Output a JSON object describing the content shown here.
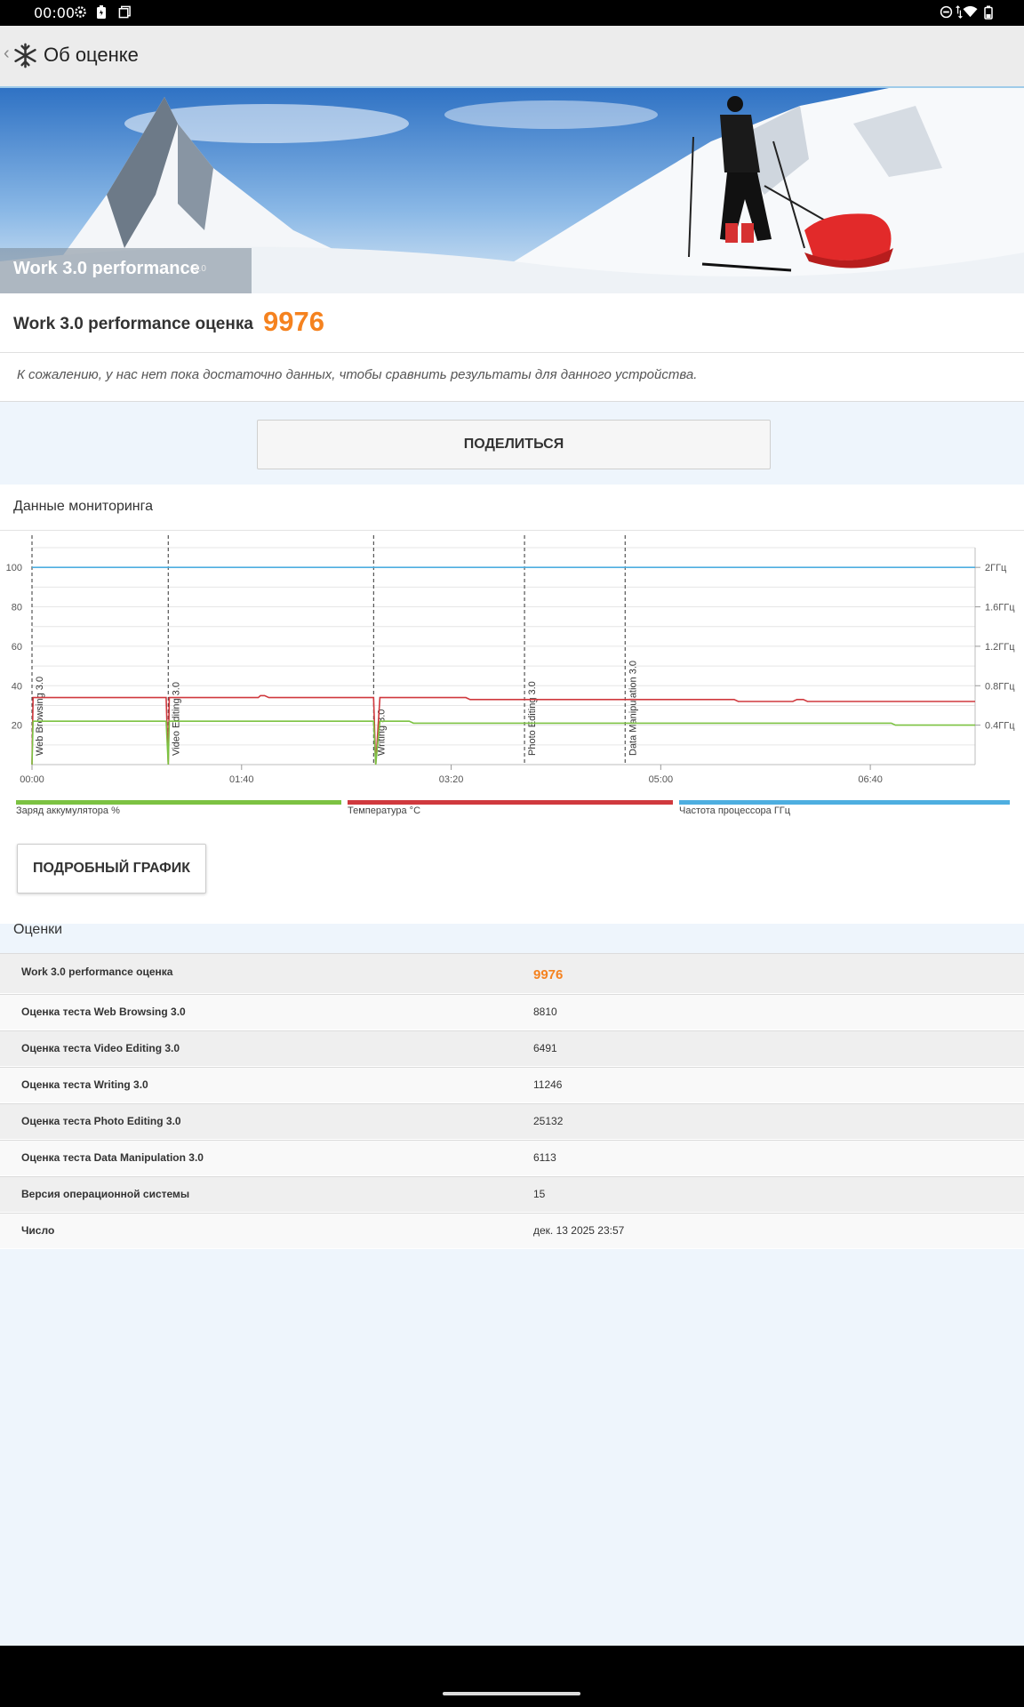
{
  "status_bar": {
    "time": "00:00",
    "icons_left": [
      "settings-icon",
      "battery-saver-icon",
      "screenshot-icon"
    ],
    "icons_right": [
      "dnd-icon",
      "data-arrows-icon",
      "wifi-icon",
      "battery-icon"
    ]
  },
  "app_bar": {
    "back_icon": "chevron-left-icon",
    "logo_icon": "snowflake-logo-icon",
    "title": "Об оценке"
  },
  "banner": {
    "label": "Work 3.0 performance",
    "badge": "3.0"
  },
  "score": {
    "label": "Work 3.0 performance оценка",
    "value": "9976",
    "accent_color": "#f5821f"
  },
  "notice": "К сожалению, у нас нет пока достаточно данных, чтобы сравнить результаты для данного устройства.",
  "share_button": "ПОДЕЛИТЬСЯ",
  "monitoring": {
    "heading": "Данные мониторинга",
    "detail_button": "ПОДРОБНЫЙ ГРАФИК",
    "legend": [
      {
        "label": "Заряд аккумулятора %",
        "color": "#7cc242"
      },
      {
        "label": "Температура °C",
        "color": "#d0393e"
      },
      {
        "label": "Частота процессора ГГц",
        "color": "#4eaee0"
      }
    ]
  },
  "chart_data": {
    "type": "line",
    "x_unit": "mm:ss",
    "x_ticks": [
      "00:00",
      "01:40",
      "03:20",
      "05:00",
      "06:40"
    ],
    "x_range_seconds": [
      0,
      450
    ],
    "y_left_ticks": [
      "20",
      "40",
      "60",
      "80",
      "100"
    ],
    "y_left_range": [
      0,
      110
    ],
    "y_right_ticks": [
      "0.4ГГц",
      "0.8ГГц",
      "1.2ГГц",
      "1.6ГГц",
      "2ГГц"
    ],
    "y_right_range_ghz": [
      0,
      2.2
    ],
    "grid": true,
    "markers": [
      {
        "label": "Web Browsing 3.0",
        "t": 0
      },
      {
        "label": "Video Editing 3.0",
        "t": 65
      },
      {
        "label": "Writing 3.0",
        "t": 163
      },
      {
        "label": "Photo Editing 3.0",
        "t": 235
      },
      {
        "label": "Data Manipulation 3.0",
        "t": 283
      }
    ],
    "series": [
      {
        "name": "Частота процессора ГГц",
        "axis": "right",
        "color": "#4eaee0",
        "points": [
          [
            0,
            2.0
          ],
          [
            450,
            2.0
          ]
        ]
      },
      {
        "name": "Температура °C",
        "axis": "left",
        "color": "#d0393e",
        "points": [
          [
            0,
            0
          ],
          [
            0.5,
            34
          ],
          [
            64,
            34
          ],
          [
            65,
            0
          ],
          [
            65.5,
            34
          ],
          [
            108,
            34
          ],
          [
            109,
            35
          ],
          [
            111,
            35
          ],
          [
            113,
            34
          ],
          [
            163,
            34
          ],
          [
            164,
            0
          ],
          [
            166,
            34
          ],
          [
            207,
            34
          ],
          [
            209,
            33
          ],
          [
            335,
            33
          ],
          [
            337,
            32
          ],
          [
            363,
            32
          ],
          [
            365,
            33
          ],
          [
            368,
            33
          ],
          [
            370,
            32
          ],
          [
            450,
            32
          ]
        ]
      },
      {
        "name": "Заряд аккумулятора %",
        "axis": "left",
        "color": "#7cc242",
        "points": [
          [
            0,
            0
          ],
          [
            0.5,
            22
          ],
          [
            64,
            22
          ],
          [
            65,
            0
          ],
          [
            65.5,
            22
          ],
          [
            163,
            22
          ],
          [
            164,
            0
          ],
          [
            166,
            22
          ],
          [
            180,
            22
          ],
          [
            182,
            21
          ],
          [
            410,
            21
          ],
          [
            412,
            20
          ],
          [
            450,
            20
          ]
        ]
      }
    ]
  },
  "scores": {
    "title": "Оценки",
    "rows": [
      {
        "label": "Work 3.0 performance оценка",
        "value": "9976"
      },
      {
        "label": "Оценка теста Web Browsing 3.0",
        "value": "8810"
      },
      {
        "label": "Оценка теста Video Editing 3.0",
        "value": "6491"
      },
      {
        "label": "Оценка теста Writing 3.0",
        "value": "11246"
      },
      {
        "label": "Оценка теста Photo Editing 3.0",
        "value": "25132"
      },
      {
        "label": "Оценка теста Data Manipulation 3.0",
        "value": "6113"
      },
      {
        "label": "Версия операционной системы",
        "value": "15"
      },
      {
        "label": "Число",
        "value": "дек. 13 2025 23:57"
      }
    ]
  }
}
